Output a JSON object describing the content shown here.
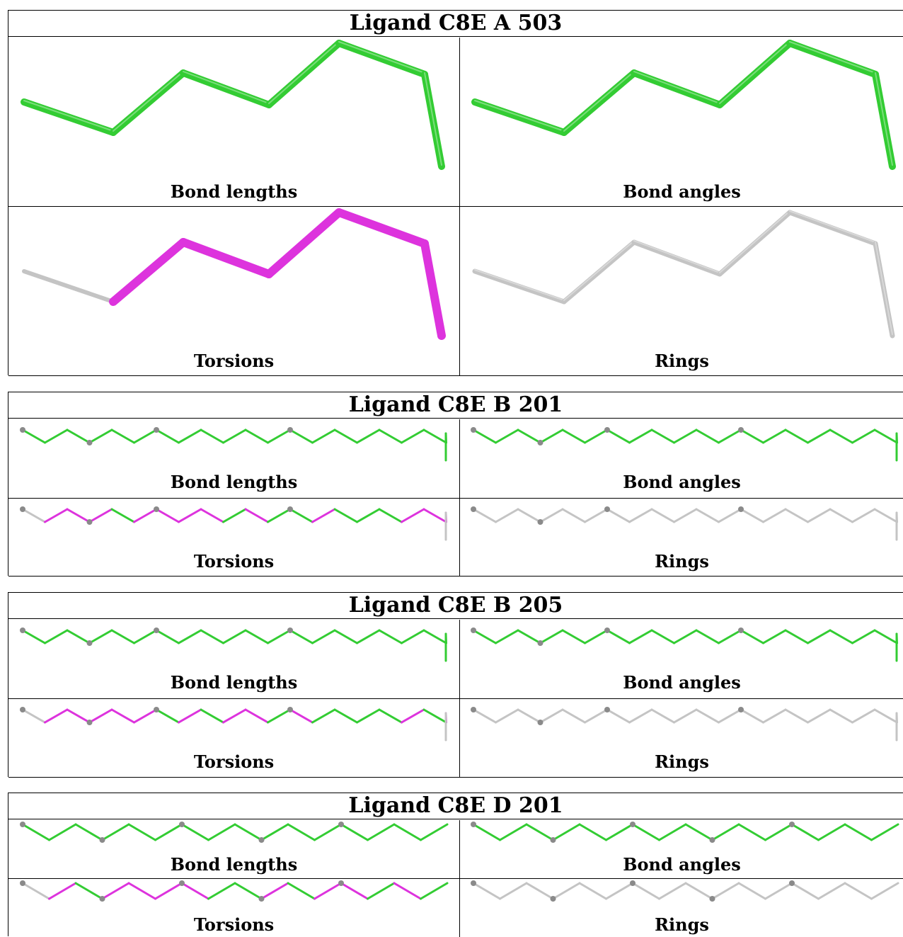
{
  "colors": {
    "good": "#33cc33",
    "outlier": "#dd33dd",
    "neutral": "#c4c4c4",
    "atom": "#8a8a8a"
  },
  "captions": {
    "bond_lengths": "Bond lengths",
    "bond_angles": "Bond angles",
    "torsions": "Torsions",
    "rings": "Rings"
  },
  "ligands": [
    {
      "title": "Ligand C8E A 503",
      "style": "thick",
      "torsion_colors": [
        "neutral",
        "outlier",
        "outlier",
        "outlier",
        "outlier",
        "outlier",
        "neutral"
      ],
      "marked_atoms": []
    },
    {
      "title": "Ligand C8E B 201",
      "style": "thin",
      "torsion_colors": [
        "neutral",
        "outlier",
        "outlier",
        "outlier",
        "good",
        "outlier",
        "outlier",
        "outlier",
        "outlier",
        "good",
        "outlier",
        "good",
        "good",
        "outlier",
        "good",
        "good",
        "good",
        "outlier",
        "outlier",
        "outlier"
      ],
      "marked_atoms": [
        0,
        3,
        6,
        9
      ]
    },
    {
      "title": "Ligand C8E B 205",
      "style": "thin",
      "torsion_colors": [
        "neutral",
        "outlier",
        "outlier",
        "outlier",
        "outlier",
        "outlier",
        "good",
        "outlier",
        "good",
        "outlier",
        "outlier",
        "good",
        "outlier",
        "good",
        "good",
        "good",
        "good",
        "outlier",
        "good",
        "outlier"
      ],
      "marked_atoms": [
        0,
        3,
        6,
        9
      ]
    },
    {
      "title": "Ligand C8E D 201",
      "style": "flat",
      "torsion_colors": [
        "neutral",
        "outlier",
        "good",
        "outlier",
        "outlier",
        "outlier",
        "outlier",
        "good",
        "good",
        "outlier",
        "good",
        "outlier",
        "outlier",
        "good",
        "outlier",
        "good",
        "neutral"
      ],
      "marked_atoms": [
        0,
        3,
        6,
        9,
        12
      ]
    }
  ]
}
